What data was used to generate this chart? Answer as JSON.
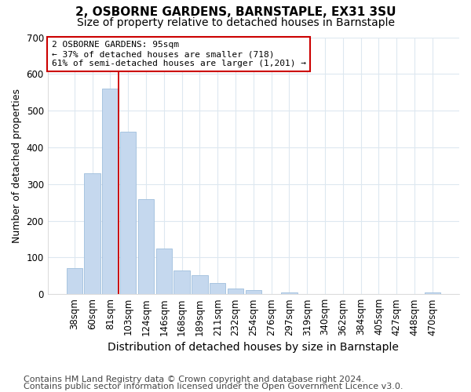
{
  "title1": "2, OSBORNE GARDENS, BARNSTAPLE, EX31 3SU",
  "title2": "Size of property relative to detached houses in Barnstaple",
  "xlabel": "Distribution of detached houses by size in Barnstaple",
  "ylabel": "Number of detached properties",
  "categories": [
    "38sqm",
    "60sqm",
    "81sqm",
    "103sqm",
    "124sqm",
    "146sqm",
    "168sqm",
    "189sqm",
    "211sqm",
    "232sqm",
    "254sqm",
    "276sqm",
    "297sqm",
    "319sqm",
    "340sqm",
    "362sqm",
    "384sqm",
    "405sqm",
    "427sqm",
    "448sqm",
    "470sqm"
  ],
  "values": [
    70,
    330,
    560,
    443,
    258,
    125,
    65,
    52,
    30,
    16,
    11,
    0,
    5,
    0,
    0,
    0,
    0,
    0,
    0,
    0,
    5
  ],
  "bar_color": "#c5d8ee",
  "bar_edge_color": "#a8c4e0",
  "ylim": [
    0,
    700
  ],
  "yticks": [
    0,
    100,
    200,
    300,
    400,
    500,
    600,
    700
  ],
  "red_line_color": "#cc0000",
  "annotation_line1": "2 OSBORNE GARDENS: 95sqm",
  "annotation_line2": "← 37% of detached houses are smaller (718)",
  "annotation_line3": "61% of semi-detached houses are larger (1,201) →",
  "annotation_box_color": "#ffffff",
  "annotation_box_edge": "#cc0000",
  "footer1": "Contains HM Land Registry data © Crown copyright and database right 2024.",
  "footer2": "Contains public sector information licensed under the Open Government Licence v3.0.",
  "background_color": "#ffffff",
  "plot_bg_color": "#ffffff",
  "grid_color": "#dde8f0",
  "title1_fontsize": 11,
  "title2_fontsize": 10,
  "xlabel_fontsize": 10,
  "ylabel_fontsize": 9,
  "tick_fontsize": 8.5,
  "footer_fontsize": 8,
  "red_line_bar_index": 2
}
